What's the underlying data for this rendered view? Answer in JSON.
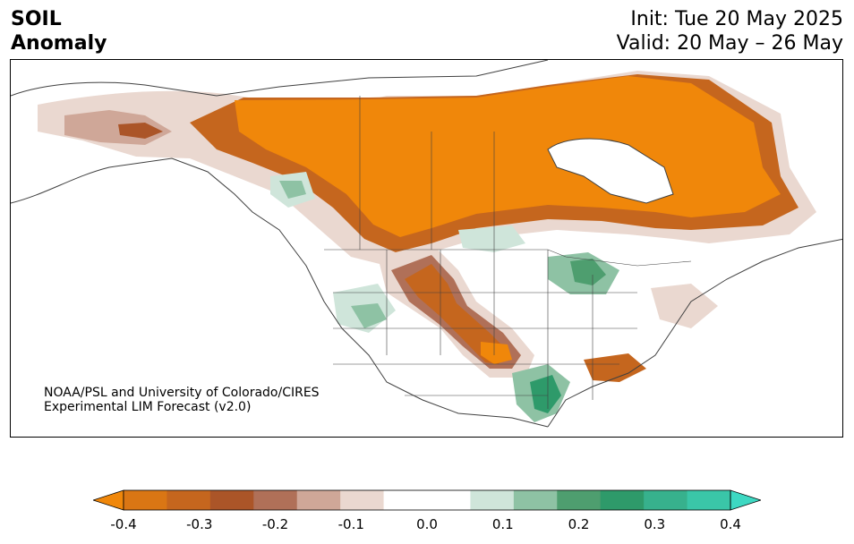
{
  "title": {
    "line1": "SOIL",
    "line2": "Anomaly"
  },
  "dates": {
    "init": "Init: Tue 20 May 2025",
    "valid": "Valid: 20 May – 26 May"
  },
  "credit": {
    "line1": "NOAA/PSL and University of Colorado/CIRES",
    "line2": "Experimental LIM Forecast (v2.0)"
  },
  "colorbar": {
    "colors": [
      "#f0870a",
      "#da7614",
      "#c5661e",
      "#ab5528",
      "#b07058",
      "#cfa798",
      "#ead8d0",
      "#ffffff",
      "#ffffff",
      "#cfe5da",
      "#8ec2a4",
      "#4e9e6f",
      "#2e9a6a",
      "#37b18d",
      "#3ac6a8",
      "#3dd8c2"
    ],
    "tick_labels": [
      "-0.4",
      "-0.3",
      "-0.2",
      "-0.1",
      "0.0",
      "0.1",
      "0.2",
      "0.3",
      "0.4"
    ]
  }
}
